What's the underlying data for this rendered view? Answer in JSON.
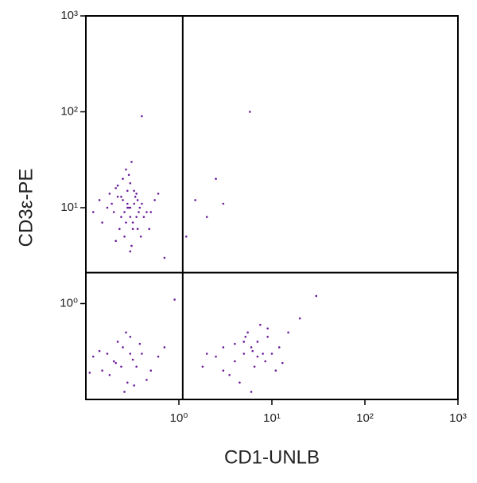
{
  "chart_data": {
    "type": "scatter",
    "x_label": "CD1-UNLB",
    "y_label": "CD3ε-PE",
    "color": "#6a1b9a",
    "log_x": true,
    "log_y": true,
    "xlim": [
      0.1,
      1000
    ],
    "ylim": [
      0.1,
      1000
    ],
    "xticks": [
      {
        "value": 1,
        "label": "10⁰"
      },
      {
        "value": 10,
        "label": "10¹"
      },
      {
        "value": 100,
        "label": "10²"
      },
      {
        "value": 1000,
        "label": "10³"
      }
    ],
    "yticks": [
      {
        "value": 1,
        "label": "10⁰"
      },
      {
        "value": 10,
        "label": "10¹"
      },
      {
        "value": 100,
        "label": "10²"
      },
      {
        "value": 1000,
        "label": "10³"
      }
    ],
    "quadrant_lines": {
      "x": 1.1,
      "y": 2.1
    },
    "x": [
      0.3,
      0.25,
      0.35,
      0.28,
      0.2,
      0.4,
      0.32,
      0.22,
      0.27,
      0.38,
      0.18,
      0.45,
      0.3,
      0.26,
      0.33,
      0.24,
      0.29,
      0.36,
      0.21,
      0.5,
      0.15,
      0.31,
      0.28,
      0.34,
      0.23,
      0.42,
      0.19,
      0.27,
      0.35,
      0.3,
      0.55,
      0.17,
      0.26,
      0.32,
      0.39,
      0.22,
      0.29,
      0.25,
      0.48,
      0.14,
      0.33,
      0.37,
      0.21,
      0.28,
      0.3,
      0.6,
      0.12,
      0.24,
      0.36,
      0.31,
      0.2,
      0.3,
      0.15,
      0.25,
      0.35,
      0.12,
      0.28,
      0.4,
      0.22,
      0.18,
      0.32,
      0.5,
      0.14,
      0.26,
      0.38,
      0.21,
      0.3,
      0.45,
      0.17,
      0.24,
      0.6,
      0.11,
      0.33,
      0.27,
      0.7,
      5,
      6,
      4,
      7,
      8,
      3,
      9,
      5.5,
      6.5,
      10,
      2.5,
      4.5,
      12,
      7.5,
      3.5,
      8.5,
      5,
      6,
      15,
      2,
      11,
      4,
      7,
      9,
      3,
      6.2,
      13,
      1.8,
      20,
      5.2,
      1.5,
      2,
      3,
      0.7,
      5.8,
      1.2,
      0.4,
      2.5,
      30,
      0.9
    ],
    "values": [
      10,
      12,
      8,
      15,
      9,
      11,
      6,
      13,
      7,
      10,
      14,
      9,
      18,
      5,
      11,
      8,
      22,
      12,
      16,
      9,
      7,
      4,
      10,
      13,
      6,
      8,
      11,
      25,
      14,
      3.5,
      12,
      10,
      9,
      7,
      5,
      17,
      10,
      20,
      6,
      12,
      15,
      9,
      4.5,
      11,
      8,
      14,
      9,
      13,
      6,
      30,
      0.25,
      0.3,
      0.2,
      0.35,
      0.22,
      0.28,
      0.15,
      0.3,
      0.4,
      0.18,
      0.26,
      0.2,
      0.32,
      0.12,
      0.38,
      0.24,
      0.45,
      0.16,
      0.3,
      0.22,
      0.28,
      0.19,
      0.14,
      0.5,
      0.35,
      0.3,
      0.35,
      0.25,
      0.4,
      0.3,
      0.2,
      0.45,
      0.5,
      0.22,
      0.3,
      0.28,
      0.15,
      0.35,
      0.6,
      0.18,
      0.25,
      0.4,
      0.12,
      0.5,
      0.3,
      0.2,
      0.38,
      0.28,
      0.55,
      0.35,
      0.32,
      0.24,
      0.22,
      0.7,
      0.45,
      12,
      8,
      11,
      3,
      100,
      5,
      90,
      20,
      1.2,
      1.1
    ]
  }
}
